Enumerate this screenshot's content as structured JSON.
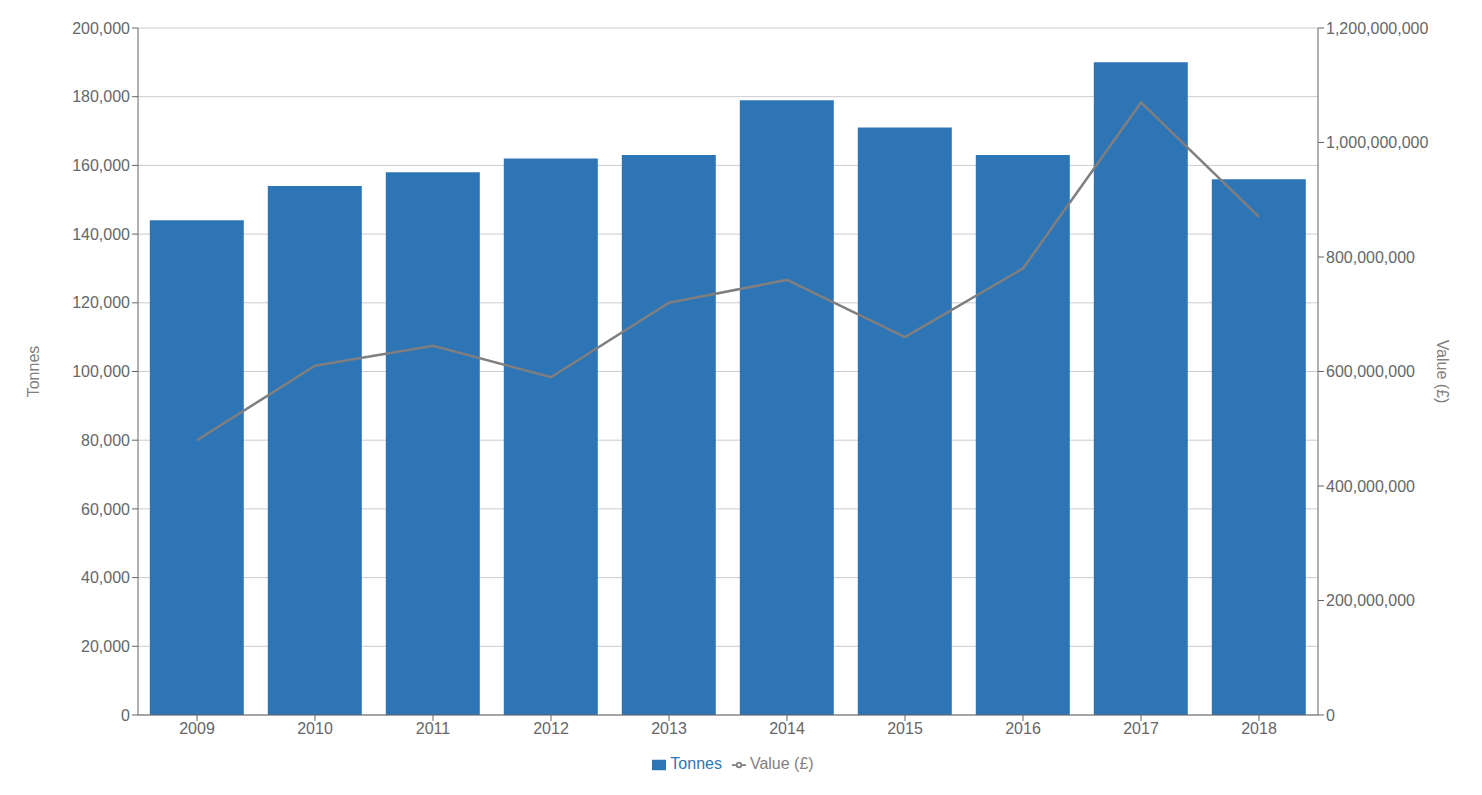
{
  "chart_data": {
    "type": "bar",
    "categories": [
      "2009",
      "2010",
      "2011",
      "2012",
      "2013",
      "2014",
      "2015",
      "2016",
      "2017",
      "2018"
    ],
    "series": [
      {
        "name": "Tonnes",
        "type": "bar",
        "color": "#2E75B6",
        "values": [
          144000,
          154000,
          158000,
          162000,
          163000,
          179000,
          171000,
          163000,
          190000,
          156000
        ]
      },
      {
        "name": "Value (£)",
        "type": "line",
        "color": "#7F7F7F",
        "axis": "y2",
        "values": [
          480000000,
          610000000,
          645000000,
          590000000,
          720000000,
          760000000,
          660000000,
          780000000,
          1070000000,
          870000000
        ]
      }
    ],
    "ylabel": "Tonnes",
    "y2label": "Value (£)",
    "ylim": [
      0,
      200000
    ],
    "yticks": [
      0,
      {
        "value": 20000,
        "label": "20,000"
      },
      {
        "value": 40000,
        "label": "40,000"
      },
      {
        "value": 60000,
        "label": "60,000"
      },
      {
        "value": 80000,
        "label": "80,000"
      },
      {
        "value": 100000,
        "label": "100,000"
      },
      {
        "value": 120000,
        "label": "120,000"
      },
      {
        "value": 140000,
        "label": "140,000"
      },
      {
        "value": 160000,
        "label": "160,000"
      },
      {
        "value": 180000,
        "label": "180,000"
      },
      {
        "value": 200000,
        "label": "200,000"
      }
    ],
    "y2lim": [
      0,
      1200000000
    ],
    "y2ticks": [
      0,
      {
        "value": 200000000,
        "label": "200,000,000"
      },
      {
        "value": 400000000,
        "label": "400,000,000"
      },
      {
        "value": 600000000,
        "label": "600,000,000"
      },
      {
        "value": 800000000,
        "label": "800,000,000"
      },
      {
        "value": 1000000000,
        "label": "1,000,000,000"
      },
      {
        "value": 1200000000,
        "label": "1,200,000,000"
      }
    ],
    "grid": true,
    "legend": "bottom"
  }
}
